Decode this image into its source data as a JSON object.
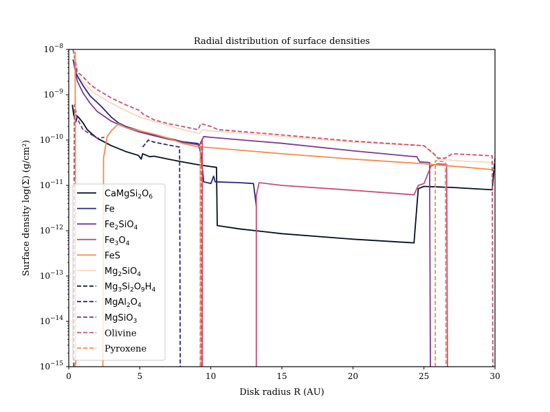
{
  "chart_data": {
    "type": "line",
    "title": "Radial distribution of surface densities",
    "xlabel": "Disk radius R (AU)",
    "ylabel": "Surface density log(Σ) (g/cm²)",
    "xlim": [
      0,
      30
    ],
    "ylim": [
      1e-15,
      1e-08
    ],
    "yscale": "log",
    "grid": false,
    "legend_position": "lower-left",
    "x_ticks": [
      0,
      5,
      10,
      15,
      20,
      25,
      30
    ],
    "x_tick_labels": [
      "0",
      "5",
      "10",
      "15",
      "20",
      "25",
      "30"
    ],
    "y_ticks": [
      1e-15,
      1e-14,
      1e-13,
      1e-12,
      1e-11,
      1e-10,
      1e-09,
      1e-08
    ],
    "y_tick_labels": [
      {
        "base": "10",
        "exp": "−15"
      },
      {
        "base": "10",
        "exp": "−14"
      },
      {
        "base": "10",
        "exp": "−13"
      },
      {
        "base": "10",
        "exp": "−12"
      },
      {
        "base": "10",
        "exp": "−11"
      },
      {
        "base": "10",
        "exp": "−10"
      },
      {
        "base": "10",
        "exp": "−9"
      },
      {
        "base": "10",
        "exp": "−8"
      }
    ],
    "series": [
      {
        "name": "CaMgSi2O6",
        "label_parts": [
          [
            "CaMgSi",
            ""
          ],
          [
            "2",
            "sub"
          ],
          [
            "O",
            ""
          ],
          [
            "6",
            "sub"
          ]
        ],
        "color": "#000f1f",
        "dash": "solid",
        "points": [
          [
            0.25,
            6e-10
          ],
          [
            0.35,
            3.6e-10
          ],
          [
            0.5,
            2.5e-10
          ],
          [
            0.6,
            3.4e-10
          ],
          [
            0.8,
            2.9e-10
          ],
          [
            1,
            2.4e-10
          ],
          [
            1.3,
            1.7e-10
          ],
          [
            1.6,
            1.4e-10
          ],
          [
            2,
            1.1e-10
          ],
          [
            3,
            7.5e-11
          ],
          [
            4,
            5.6e-11
          ],
          [
            4.9,
            4.6e-11
          ],
          [
            5.1,
            3.8e-11
          ],
          [
            5.2,
            5e-11
          ],
          [
            5.7,
            4.3e-11
          ],
          [
            6,
            4.4e-11
          ],
          [
            7,
            3.8e-11
          ],
          [
            8,
            3.3e-11
          ],
          [
            9,
            2.9e-11
          ],
          [
            10,
            2.6e-11
          ],
          [
            10.4,
            2.5e-11
          ],
          [
            10.45,
            1.3e-12
          ],
          [
            12,
            1.1e-12
          ],
          [
            15,
            8.6e-13
          ],
          [
            20,
            6.5e-13
          ],
          [
            24.3,
            5.4e-13
          ],
          [
            24.6,
            8.5e-12
          ],
          [
            25,
            9.5e-12
          ],
          [
            27,
            9e-12
          ],
          [
            29.8,
            8e-12
          ],
          [
            30,
            4e-11
          ]
        ]
      },
      {
        "name": "Fe",
        "label_parts": [
          [
            "Fe",
            ""
          ]
        ],
        "color": "#29247b",
        "dash": "solid",
        "points": [
          [
            0.3,
            6e-09
          ],
          [
            0.6,
            2.6e-09
          ],
          [
            1,
            1.6e-09
          ],
          [
            1.5,
            9.5e-10
          ],
          [
            2.3,
            5.5e-10
          ],
          [
            3,
            3.2e-10
          ],
          [
            3.5,
            2.4e-10
          ],
          [
            4,
            2e-10
          ],
          [
            5,
            1.6e-10
          ],
          [
            6,
            1.3e-10
          ],
          [
            7,
            1.1e-10
          ],
          [
            8,
            9.2e-11
          ],
          [
            9.1,
            8.4e-11
          ],
          [
            9.3,
            5e-11
          ],
          [
            9.5,
            1.2e-11
          ],
          [
            10,
            1.1e-11
          ],
          [
            10.2,
            1.6e-11
          ],
          [
            10.3,
            1.2e-11
          ],
          [
            12,
            1.15e-11
          ],
          [
            13,
            1.1e-11
          ],
          [
            13.2,
            3.5e-12
          ]
        ]
      },
      {
        "name": "Fe2SiO4",
        "label_parts": [
          [
            "Fe",
            ""
          ],
          [
            "2",
            "sub"
          ],
          [
            "SiO",
            ""
          ],
          [
            "4",
            "sub"
          ]
        ],
        "color": "#7b3a8e",
        "dash": "solid",
        "points": [
          [
            0.35,
            5e-09
          ],
          [
            0.6,
            2e-09
          ],
          [
            1,
            1.1e-09
          ],
          [
            1.5,
            6.5e-10
          ],
          [
            2,
            4.3e-10
          ],
          [
            3,
            2.6e-10
          ],
          [
            4,
            1.9e-10
          ],
          [
            5,
            1.5e-10
          ],
          [
            6,
            1.25e-10
          ],
          [
            7,
            1.05e-10
          ],
          [
            8,
            9e-11
          ],
          [
            9.2,
            7.8e-11
          ],
          [
            9.5,
            1.2e-10
          ],
          [
            10,
            1.15e-10
          ],
          [
            15,
            8.5e-11
          ],
          [
            20,
            5.8e-11
          ],
          [
            24,
            4.4e-11
          ],
          [
            24.5,
            4.3e-11
          ],
          [
            24.7,
            3.3e-11
          ],
          [
            25.4,
            3.2e-11
          ],
          [
            25.45,
            1e-15
          ]
        ]
      },
      {
        "name": "Fe3O4",
        "label_parts": [
          [
            "Fe",
            ""
          ],
          [
            "3",
            "sub"
          ],
          [
            "O",
            ""
          ],
          [
            "4",
            "sub"
          ]
        ],
        "color": "#c54d7a",
        "dash": "solid",
        "points": [
          [
            13.2,
            1e-15
          ],
          [
            13.2,
            6e-12
          ],
          [
            13.4,
            1.15e-11
          ],
          [
            15,
            1e-11
          ],
          [
            20,
            7.8e-12
          ],
          [
            24.3,
            6.2e-12
          ],
          [
            24.6,
            1e-11
          ],
          [
            25,
            1.1e-11
          ],
          [
            25.5,
            2.7e-11
          ],
          [
            26,
            3e-11
          ],
          [
            26.6,
            2.9e-11
          ],
          [
            26.65,
            1e-15
          ]
        ]
      },
      {
        "name": "FeS",
        "label_parts": [
          [
            "FeS",
            ""
          ]
        ],
        "color": "#f58a4a",
        "dash": "solid",
        "points": [
          [
            2.4,
            1e-15
          ],
          [
            2.45,
            4e-11
          ],
          [
            2.7,
            1.2e-10
          ],
          [
            3,
            1.6e-10
          ],
          [
            3.5,
            2.3e-10
          ],
          [
            4,
            1.9e-10
          ],
          [
            5,
            1.6e-10
          ],
          [
            6,
            1.35e-10
          ],
          [
            7,
            1.1e-10
          ],
          [
            8,
            8.5e-11
          ],
          [
            9,
            7.2e-11
          ],
          [
            10,
            6.8e-11
          ],
          [
            15,
            5e-11
          ],
          [
            20,
            3.8e-11
          ],
          [
            25,
            3e-11
          ],
          [
            28,
            2.5e-11
          ],
          [
            30,
            2.2e-11
          ]
        ]
      },
      {
        "name": "Mg2SiO4",
        "label_parts": [
          [
            "Mg",
            ""
          ],
          [
            "2",
            "sub"
          ],
          [
            "SiO",
            ""
          ],
          [
            "4",
            "sub"
          ]
        ],
        "color": "#f7d9bd",
        "dash": "solid",
        "points": [
          [
            0.4,
            9e-09
          ],
          [
            0.6,
            3e-09
          ],
          [
            1,
            1.9e-09
          ],
          [
            1.5,
            1.3e-09
          ],
          [
            2,
            1e-09
          ],
          [
            3,
            6.5e-10
          ],
          [
            4,
            4.5e-10
          ],
          [
            5,
            3.2e-10
          ],
          [
            6,
            2.6e-10
          ],
          [
            7,
            2.1e-10
          ],
          [
            8,
            1.7e-10
          ],
          [
            9.2,
            1.4e-10
          ],
          [
            9.4,
            1.7e-10
          ],
          [
            10,
            1.6e-10
          ],
          [
            15,
            1.2e-10
          ],
          [
            20,
            9e-11
          ],
          [
            25,
            7.5e-11
          ],
          [
            25.8,
            4.5e-11
          ],
          [
            26,
            3.8e-11
          ],
          [
            27,
            3.6e-11
          ],
          [
            28,
            3.4e-11
          ],
          [
            30,
            3.2e-11
          ]
        ]
      },
      {
        "name": "Mg3Si2O9H4",
        "label_parts": [
          [
            "Mg",
            ""
          ],
          [
            "3",
            "sub"
          ],
          [
            "Si",
            ""
          ],
          [
            "2",
            "sub"
          ],
          [
            "O",
            ""
          ],
          [
            "9",
            "sub"
          ],
          [
            "H",
            ""
          ],
          [
            "4",
            "sub"
          ]
        ],
        "color": "#000f1f",
        "dash": "dashed",
        "points": []
      },
      {
        "name": "MgAl2O4",
        "label_parts": [
          [
            "MgAl",
            ""
          ],
          [
            "2",
            "sub"
          ],
          [
            "O",
            ""
          ],
          [
            "4",
            "sub"
          ]
        ],
        "color": "#29247b",
        "dash": "dashed",
        "points": [
          [
            5.2,
            7e-11
          ],
          [
            5.6,
            1e-10
          ],
          [
            6,
            9e-11
          ],
          [
            7,
            7.8e-11
          ],
          [
            7.8,
            7e-11
          ],
          [
            7.85,
            1e-15
          ]
        ]
      },
      {
        "name": "MgSiO3",
        "label_parts": [
          [
            "MgSiO",
            ""
          ],
          [
            "3",
            "sub"
          ]
        ],
        "color": "#7b3a8e",
        "dash": "dashed",
        "points": [
          [
            0.35,
            1e-15
          ],
          [
            0.4,
            6e-10
          ],
          [
            0.6,
            3e-10
          ],
          [
            1,
            1.7e-10
          ],
          [
            2,
            1.1e-10
          ],
          [
            2.5,
            1.15e-10
          ]
        ]
      },
      {
        "name": "Olivine",
        "label_parts": [
          [
            "Olivine",
            ""
          ]
        ],
        "color": "#c54d7a",
        "dash": "dashed",
        "points": [
          [
            0.3,
            1e-08
          ],
          [
            0.6,
            3.2e-09
          ],
          [
            1,
            2.5e-09
          ],
          [
            1.5,
            1.7e-09
          ],
          [
            2,
            1.3e-09
          ],
          [
            3,
            8.5e-10
          ],
          [
            4,
            6e-10
          ],
          [
            5,
            4.5e-10
          ],
          [
            5.2,
            3.8e-10
          ],
          [
            6,
            2.8e-10
          ],
          [
            7,
            2.3e-10
          ],
          [
            8,
            2e-10
          ],
          [
            9.1,
            1.7e-10
          ],
          [
            9.3,
            2.3e-10
          ],
          [
            10,
            2e-10
          ],
          [
            10.5,
            1.7e-10
          ],
          [
            15,
            1.3e-10
          ],
          [
            20,
            9.5e-11
          ],
          [
            25,
            7.5e-11
          ],
          [
            25.7,
            5e-11
          ],
          [
            26,
            4e-11
          ],
          [
            26.5,
            4e-11
          ],
          [
            27,
            5e-11
          ],
          [
            28,
            4.8e-11
          ],
          [
            29.8,
            4.5e-11
          ],
          [
            29.85,
            1e-15
          ]
        ]
      },
      {
        "name": "Pyroxene",
        "label_parts": [
          [
            "Pyroxene",
            ""
          ]
        ],
        "color": "#f58a4a",
        "dash": "dashed",
        "points": [
          [
            9.25,
            1e-15
          ],
          [
            9.25,
            8e-11
          ],
          [
            9.3,
            1e-15
          ]
        ]
      }
    ],
    "extra_drops": [
      {
        "color": "#c54d7a",
        "dash": "dashed",
        "points": [
          [
            9.35,
            1e-15
          ],
          [
            9.35,
            9e-11
          ]
        ]
      },
      {
        "color": "#f58a4a",
        "dash": "dashed",
        "points": [
          [
            25.8,
            1e-15
          ],
          [
            25.8,
            3.5e-11
          ],
          [
            26.5,
            3.3e-11
          ],
          [
            26.55,
            1e-15
          ]
        ]
      },
      {
        "color": "#f58a4a",
        "dash": "dashed",
        "points": [
          [
            0.45,
            1e-15
          ],
          [
            0.45,
            9e-09
          ],
          [
            0.5,
            1e-15
          ]
        ]
      },
      {
        "color": "#c54d7a",
        "dash": "solid",
        "points": [
          [
            9.4,
            1e-15
          ],
          [
            9.4,
            1e-10
          ]
        ]
      }
    ]
  }
}
